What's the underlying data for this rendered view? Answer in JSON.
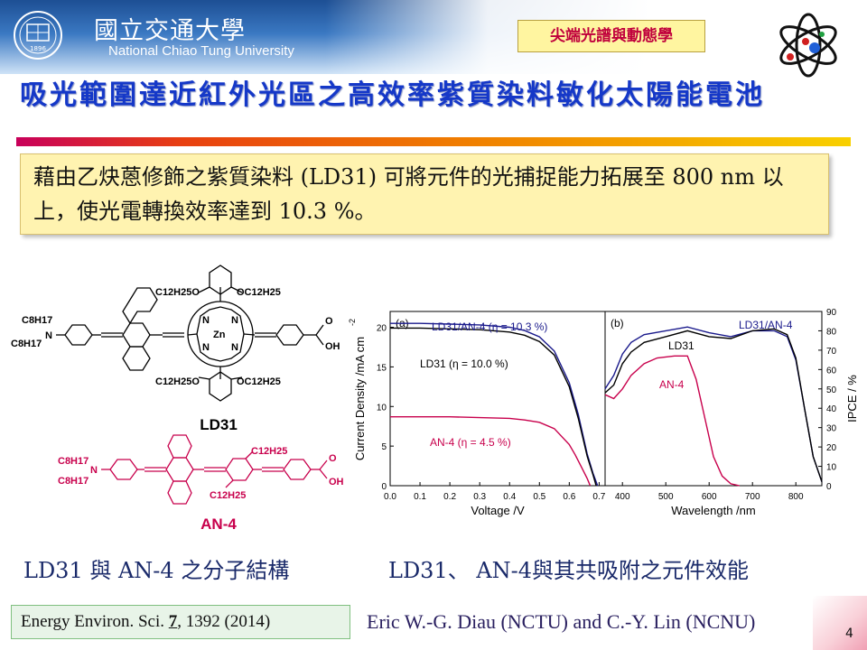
{
  "header": {
    "university_zh": "國立交通大學",
    "university_en": "National Chiao Tung University",
    "topic_label": "尖端光譜與動態學",
    "logo_year": "1896",
    "icons": [
      "nctu-logo-icon",
      "atom-icon"
    ]
  },
  "slide": {
    "title": "吸光範圍達近紅外光區之高效率紫質染料敏化太陽能電池",
    "callout": "藉由乙炔蒽修飾之紫質染料 (LD31) 可將元件的光捕捉能力拓展至 800 nm 以上，使光電轉換效率達到 10.3 %。",
    "caption_left": "LD31 與 AN-4 之分子結構",
    "caption_right": "LD31、 AN-4與其共吸附之元件效能",
    "reference_pre": "Energy Environ. Sci. ",
    "reference_vol": "7",
    "reference_post": ", 1392 (2014)",
    "authors": "Eric W.-G. Diau (NCTU) and C.-Y. Lin (NCNU)",
    "page_number": "4"
  },
  "molecules": {
    "ld31": {
      "name": "LD31",
      "labels": [
        "C8H17",
        "C8H17",
        "N",
        "C12H25O",
        "OC12H25",
        "C12H25O",
        "OC12H25",
        "N",
        "N",
        "N",
        "N",
        "Zn",
        "O",
        "OH"
      ]
    },
    "an4": {
      "name": "AN-4",
      "labels": [
        "C8H17",
        "C8H17",
        "N",
        "C12H25",
        "C12H25",
        "O",
        "OH"
      ]
    },
    "colors": {
      "ld31": "#000000",
      "an4": "#c8004c"
    }
  },
  "chart_data": [
    {
      "type": "line",
      "panel": "(a)",
      "xlabel": "Voltage /V",
      "ylabel": "Current Density /mA cm-2",
      "ylabel_main": "Current Density /mA cm",
      "ylabel_sup": "-2",
      "xlim": [
        0.0,
        0.72
      ],
      "ylim": [
        0,
        22
      ],
      "xticks": [
        "0.0",
        "0.1",
        "0.2",
        "0.3",
        "0.4",
        "0.5",
        "0.6",
        "0.7"
      ],
      "yticks": [
        "0",
        "5",
        "10",
        "15",
        "20"
      ],
      "series": [
        {
          "name": "LD31/AN-4 (η = 10.3 %)",
          "color": "#1a1a8c",
          "x": [
            0.0,
            0.1,
            0.2,
            0.3,
            0.4,
            0.45,
            0.5,
            0.55,
            0.6,
            0.63,
            0.66,
            0.68,
            0.695
          ],
          "y": [
            20.5,
            20.5,
            20.4,
            20.3,
            20.0,
            19.6,
            18.8,
            17.0,
            13.0,
            9.0,
            4.0,
            1.5,
            0.0
          ]
        },
        {
          "name": "LD31 (η = 10.0 %)",
          "color": "#000000",
          "x": [
            0.0,
            0.1,
            0.2,
            0.3,
            0.4,
            0.45,
            0.5,
            0.55,
            0.6,
            0.63,
            0.66,
            0.68,
            0.69
          ],
          "y": [
            19.9,
            19.9,
            19.8,
            19.7,
            19.4,
            19.0,
            18.2,
            16.5,
            12.5,
            8.5,
            3.7,
            1.3,
            0.0
          ]
        },
        {
          "name": "AN-4 (η = 4.5 %)",
          "color": "#c8004c",
          "x": [
            0.0,
            0.1,
            0.2,
            0.3,
            0.4,
            0.45,
            0.5,
            0.55,
            0.6,
            0.62,
            0.64,
            0.66,
            0.67
          ],
          "y": [
            8.7,
            8.7,
            8.7,
            8.6,
            8.5,
            8.3,
            8.0,
            7.2,
            5.2,
            3.9,
            2.4,
            0.9,
            0.0
          ]
        }
      ]
    },
    {
      "type": "line",
      "panel": "(b)",
      "xlabel": "Wavelength /nm",
      "ylabel": "IPCE / %",
      "xlim": [
        360,
        860
      ],
      "ylim": [
        0,
        90
      ],
      "xticks": [
        "400",
        "500",
        "600",
        "700",
        "800"
      ],
      "yticks": [
        "0",
        "10",
        "20",
        "30",
        "40",
        "50",
        "60",
        "70",
        "80",
        "90"
      ],
      "series": [
        {
          "name": "LD31/AN-4",
          "color": "#1a1a8c",
          "x": [
            360,
            380,
            400,
            420,
            450,
            500,
            550,
            600,
            650,
            700,
            750,
            780,
            800,
            820,
            840,
            860
          ],
          "y": [
            50,
            57,
            68,
            74,
            78,
            80,
            82,
            79,
            77,
            80,
            80,
            77,
            65,
            40,
            15,
            2
          ]
        },
        {
          "name": "LD31",
          "color": "#000000",
          "x": [
            360,
            380,
            400,
            420,
            450,
            500,
            550,
            600,
            650,
            700,
            750,
            780,
            800,
            820,
            840,
            860
          ],
          "y": [
            48,
            52,
            63,
            69,
            74,
            77,
            80,
            77,
            76,
            80,
            81,
            78,
            66,
            40,
            15,
            2
          ]
        },
        {
          "name": "AN-4",
          "color": "#c8004c",
          "x": [
            360,
            380,
            400,
            420,
            450,
            480,
            520,
            550,
            570,
            590,
            610,
            630,
            650,
            670
          ],
          "y": [
            47,
            45,
            50,
            57,
            63,
            66,
            67,
            67,
            55,
            35,
            15,
            5,
            1,
            0
          ]
        }
      ]
    }
  ]
}
